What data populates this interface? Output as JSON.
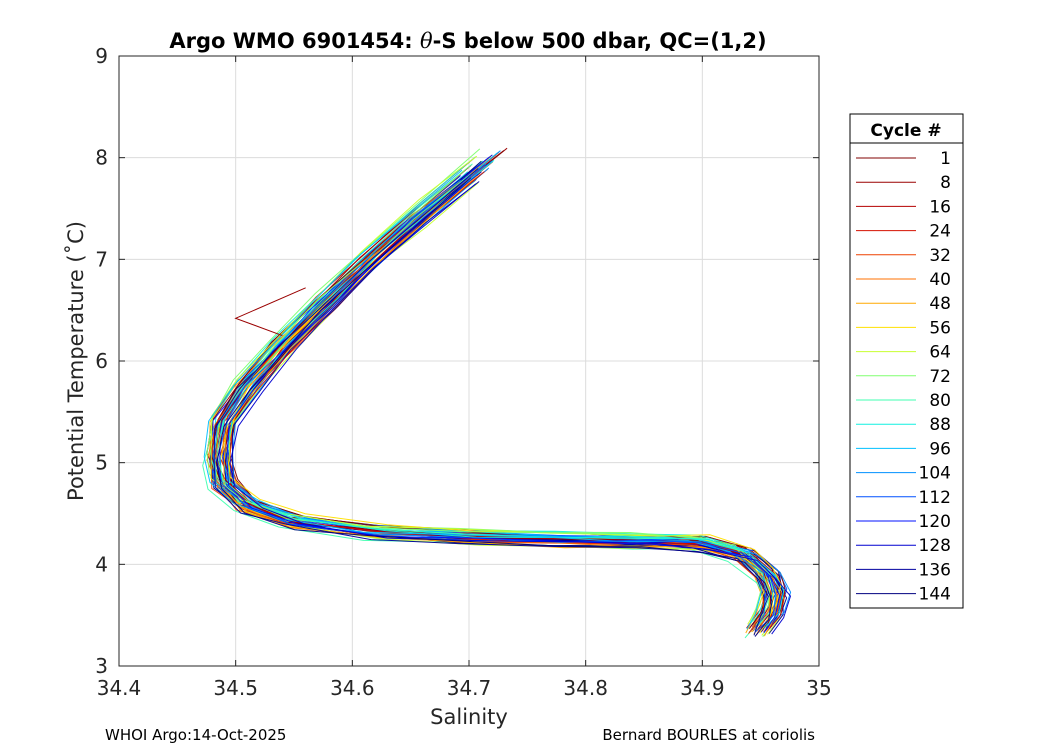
{
  "chart_data": {
    "type": "line",
    "title_parts": [
      "Argo WMO 6901454: ",
      "θ",
      "-S below 500 dbar,  QC=(1,2)"
    ],
    "xlabel": "Salinity",
    "ylabel": "Potential Temperature (˚C)",
    "xlim": [
      34.4,
      35.0
    ],
    "ylim": [
      3,
      9
    ],
    "xticks": [
      34.4,
      34.5,
      34.6,
      34.7,
      34.8,
      34.9,
      35.0
    ],
    "xtick_labels": [
      "34.4",
      "34.5",
      "34.6",
      "34.7",
      "34.8",
      "34.9",
      "35"
    ],
    "yticks": [
      3,
      4,
      5,
      6,
      7,
      8,
      9
    ],
    "ytick_labels": [
      "3",
      "4",
      "5",
      "6",
      "7",
      "8",
      "9"
    ],
    "grid": true,
    "legend": {
      "title": "Cycle #",
      "placement": "right-outside",
      "entries": [
        {
          "label": "1",
          "color": "#800000"
        },
        {
          "label": "8",
          "color": "#9a0000"
        },
        {
          "label": "16",
          "color": "#b40000"
        },
        {
          "label": "24",
          "color": "#d41000"
        },
        {
          "label": "32",
          "color": "#ee4000"
        },
        {
          "label": "40",
          "color": "#ff7000"
        },
        {
          "label": "48",
          "color": "#ffa800"
        },
        {
          "label": "56",
          "color": "#ffe000"
        },
        {
          "label": "64",
          "color": "#c8ff30"
        },
        {
          "label": "72",
          "color": "#80ff70"
        },
        {
          "label": "80",
          "color": "#40ffb0"
        },
        {
          "label": "88",
          "color": "#10f0e0"
        },
        {
          "label": "96",
          "color": "#00c0ff"
        },
        {
          "label": "104",
          "color": "#0090ff"
        },
        {
          "label": "112",
          "color": "#0050ff"
        },
        {
          "label": "120",
          "color": "#0010ff"
        },
        {
          "label": "128",
          "color": "#0000d0"
        },
        {
          "label": "136",
          "color": "#0000a0"
        },
        {
          "label": "144",
          "color": "#000080"
        }
      ]
    },
    "profile_shape": {
      "description": "Each cycle traces a theta-S curve from warm/salty upper end down to a fresh minimum near 5°C, then a near-isothermal branch to high salinity and a cold hook.",
      "salinity": [
        34.72,
        34.67,
        34.62,
        34.58,
        34.54,
        34.51,
        34.49,
        34.485,
        34.49,
        34.51,
        34.55,
        34.62,
        34.7,
        34.78,
        34.85,
        34.9,
        34.935,
        34.955,
        34.962,
        34.958,
        34.948
      ],
      "temperature": [
        8.02,
        7.55,
        7.05,
        6.6,
        6.15,
        5.75,
        5.4,
        5.05,
        4.8,
        4.58,
        4.42,
        4.32,
        4.27,
        4.24,
        4.23,
        4.2,
        4.1,
        3.9,
        3.72,
        3.52,
        3.35
      ]
    },
    "cycles": [
      1,
      8,
      16,
      24,
      32,
      40,
      48,
      56,
      64,
      72,
      80,
      88,
      96,
      104,
      112,
      120,
      128,
      136,
      144
    ]
  },
  "footer": {
    "left": "WHOI Argo:14-Oct-2025",
    "right": "Bernard BOURLES at coriolis"
  }
}
